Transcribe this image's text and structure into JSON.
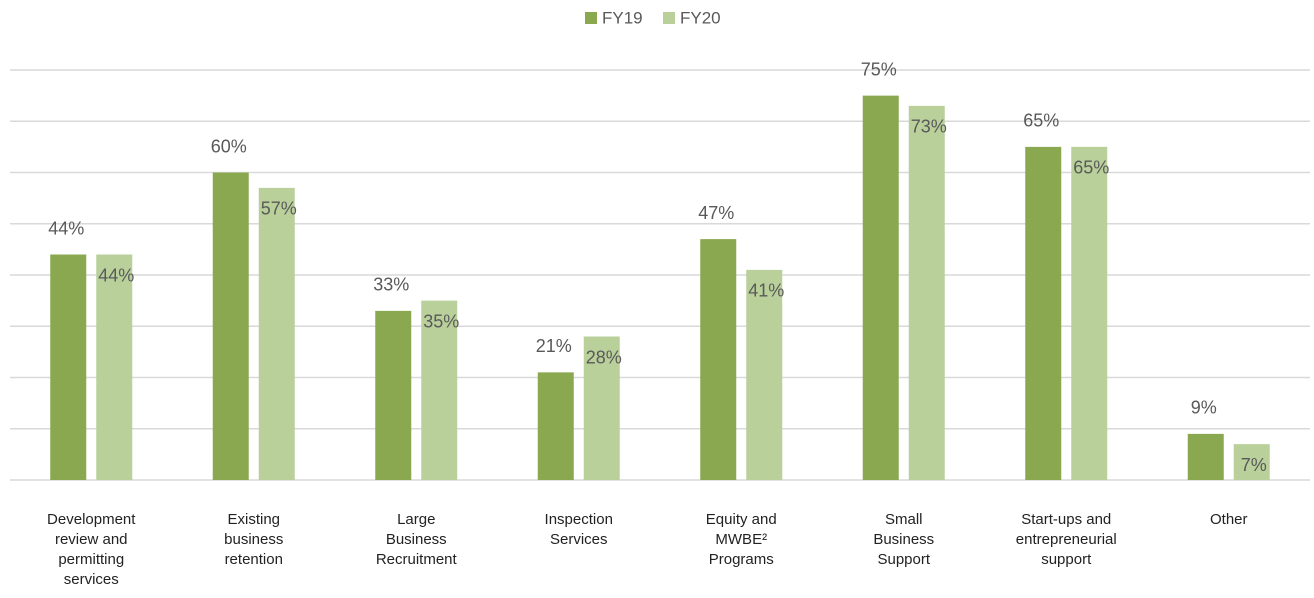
{
  "chart_data": {
    "type": "bar",
    "categories": [
      "Development\nreview and\npermitting\nservices",
      "Existing\nbusiness\nretention",
      "Large\nBusiness\nRecruitment",
      "Inspection\nServices",
      "Equity and\nMWBE²\nPrograms",
      "Small\nBusiness\nSupport",
      "Start-ups and\nentrepreneurial\nsupport",
      "Other"
    ],
    "series": [
      {
        "name": "FY19",
        "color": "#8aa84f",
        "values": [
          44,
          60,
          33,
          21,
          47,
          75,
          65,
          9
        ],
        "value_labels": [
          "44%",
          "60%",
          "33%",
          "21%",
          "47%",
          "75%",
          "65%",
          "9%"
        ]
      },
      {
        "name": "FY20",
        "color": "#b9d09b",
        "values": [
          44,
          57,
          35,
          28,
          41,
          73,
          65,
          7
        ],
        "value_labels": [
          "44%",
          "57%",
          "35%",
          "28%",
          "41%",
          "73%",
          "65%",
          "7%"
        ]
      }
    ],
    "ylim": [
      0,
      80
    ],
    "yticks": [
      0,
      10,
      20,
      30,
      40,
      50,
      60,
      70,
      80
    ],
    "grid": true,
    "legend": "top"
  }
}
